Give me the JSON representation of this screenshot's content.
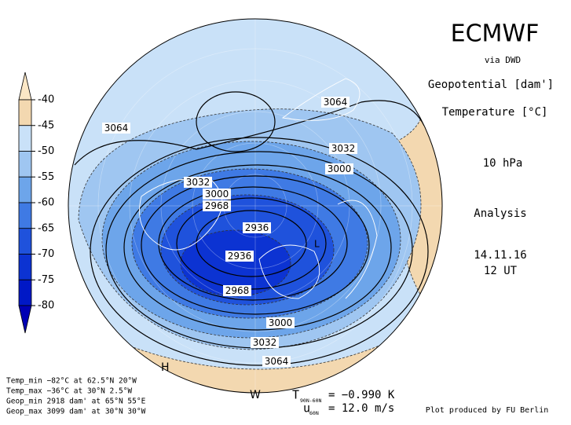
{
  "colorbar": {
    "levels": [
      -40,
      -45,
      -50,
      -55,
      -60,
      -65,
      -70,
      -75,
      -80
    ],
    "colors": [
      "#fbe7c6",
      "#f3d8b0",
      "#c9e1f8",
      "#9fc6f1",
      "#6da5ea",
      "#3f7ae4",
      "#1f52dc",
      "#0c33d2",
      "#0018c6",
      "#0000b4"
    ]
  },
  "header": {
    "title": "ECMWF",
    "source": "via DWD",
    "field1": "Geopotential [dam']",
    "field2": "Temperature [°C]",
    "level": "10 hPa",
    "kind": "Analysis",
    "date": "14.11.16",
    "time": "12 UT"
  },
  "map": {
    "contour_labels": [
      3064,
      3064,
      3064,
      3032,
      3032,
      3032,
      3000,
      3000,
      3000,
      2968,
      2968,
      2936,
      2936
    ],
    "markers": [
      "H",
      "L",
      "W"
    ]
  },
  "stats": [
    "Temp_min −82°C at 62.5°N 20°W",
    "Temp_max −36°C at 30°N 2.5°W",
    "Geop_min 2918 dam' at 65°N 55°E",
    "Geop_max 3099 dam' at 30°N 30°W"
  ],
  "indices": {
    "t_symbol": "T",
    "t_sub": "90N-60N",
    "t_value": "= −0.990 K",
    "u_symbol": "u",
    "u_sub": "60N",
    "u_value": "= 12.0 m/s"
  },
  "credit": "Plot produced by FU Berlin"
}
